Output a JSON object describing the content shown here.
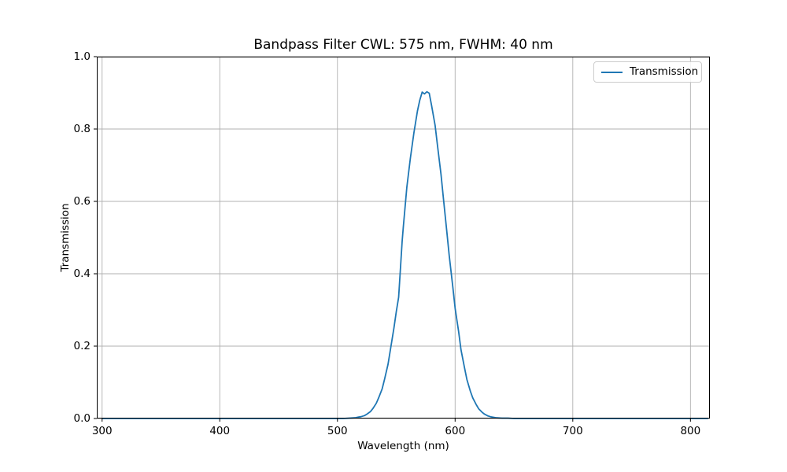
{
  "chart_data": {
    "type": "line",
    "title": "Bandpass Filter CWL: 575 nm, FWHM: 40 nm",
    "xlabel": "Wavelength (nm)",
    "ylabel": "Transmission",
    "xlim": [
      295.5,
      816.5
    ],
    "ylim": [
      0,
      1
    ],
    "grid": true,
    "legend_position": "upper right",
    "x_tick_values": [
      300,
      400,
      500,
      600,
      700,
      800
    ],
    "x_tick_labels": [
      "300",
      "400",
      "500",
      "600",
      "700",
      "800"
    ],
    "y_tick_values": [
      0,
      0.2,
      0.4,
      0.6,
      0.8,
      1
    ],
    "y_tick_labels": [
      "0.0",
      "0.2",
      "0.4",
      "0.6",
      "0.8",
      "1.0"
    ],
    "series": [
      {
        "name": "Transmission",
        "color": "#1f77b4",
        "x": [
          300,
          320,
          340,
          360,
          380,
          400,
          420,
          440,
          460,
          480,
          500,
          505,
          510,
          515,
          518,
          520,
          523,
          525,
          528,
          530,
          533,
          535,
          538,
          540,
          543,
          545,
          548,
          550,
          552,
          555,
          556,
          559,
          562,
          565,
          568,
          570,
          572,
          574,
          576,
          578,
          580,
          583,
          585,
          588,
          590,
          593,
          595,
          598,
          600,
          603,
          605,
          608,
          610,
          613,
          615,
          618,
          620,
          623,
          625,
          628,
          630,
          635,
          640,
          645,
          650,
          660,
          680,
          700,
          720,
          740,
          760,
          780,
          800,
          815
        ],
        "values": [
          0,
          0,
          0,
          0,
          0,
          0,
          0,
          0,
          0,
          0,
          0,
          0,
          0.001,
          0.002,
          0.004,
          0.005,
          0.008,
          0.012,
          0.019,
          0.027,
          0.042,
          0.057,
          0.082,
          0.108,
          0.15,
          0.19,
          0.25,
          0.295,
          0.335,
          0.49,
          0.53,
          0.64,
          0.72,
          0.79,
          0.85,
          0.88,
          0.902,
          0.897,
          0.903,
          0.899,
          0.865,
          0.81,
          0.755,
          0.675,
          0.61,
          0.515,
          0.45,
          0.365,
          0.305,
          0.24,
          0.19,
          0.14,
          0.108,
          0.075,
          0.057,
          0.038,
          0.027,
          0.017,
          0.012,
          0.007,
          0.005,
          0.002,
          0.001,
          0.001,
          0,
          0,
          0,
          0,
          0,
          0,
          0,
          0,
          0,
          0
        ]
      }
    ]
  },
  "legend": {
    "label": "Transmission"
  },
  "colors": {
    "line": "#1f77b4",
    "grid": "#b0b0b0",
    "spine": "#000000",
    "tick": "#000000",
    "legend_border": "#cccccc",
    "background": "#ffffff"
  }
}
